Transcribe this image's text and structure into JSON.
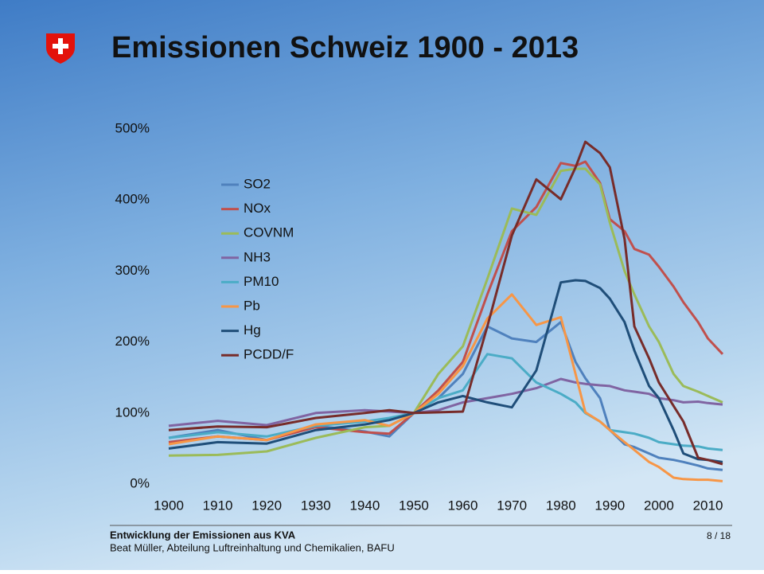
{
  "header": {
    "title": "Emissionen Schweiz 1900 - 2013"
  },
  "chart_data": {
    "type": "line",
    "x": [
      1900,
      1910,
      1920,
      1930,
      1940,
      1945,
      1950,
      1955,
      1960,
      1965,
      1970,
      1975,
      1980,
      1983,
      1985,
      1988,
      1990,
      1993,
      1995,
      1998,
      2000,
      2003,
      2005,
      2008,
      2010,
      2013
    ],
    "xlim": [
      1900,
      2013
    ],
    "xticks": [
      1900,
      1910,
      1920,
      1930,
      1940,
      1950,
      1960,
      1970,
      1980,
      1990,
      2000,
      2010
    ],
    "ylim": [
      0,
      500
    ],
    "yticks": [
      {
        "value": 0,
        "label": "0%"
      },
      {
        "value": 100,
        "label": "100%"
      },
      {
        "value": 200,
        "label": "200%"
      },
      {
        "value": 300,
        "label": "300%"
      },
      {
        "value": 400,
        "label": "400%"
      },
      {
        "value": 500,
        "label": "500%"
      }
    ],
    "grid": false,
    "legend": "upper left",
    "series": [
      {
        "name": "SO2",
        "color": "#4f81bd",
        "values": [
          65,
          76,
          62,
          82,
          74,
          67,
          100,
          121,
          155,
          222,
          205,
          200,
          228,
          172,
          149,
          121,
          76,
          56,
          52,
          43,
          37,
          34,
          31,
          26,
          22,
          20
        ]
      },
      {
        "name": "NOx",
        "color": "#c0504d",
        "values": [
          59,
          67,
          62,
          80,
          73,
          71,
          100,
          132,
          172,
          267,
          356,
          390,
          452,
          448,
          454,
          424,
          373,
          356,
          331,
          323,
          306,
          278,
          256,
          228,
          205,
          183
        ]
      },
      {
        "name": "COVNM",
        "color": "#9bbb59",
        "values": [
          40,
          41,
          46,
          65,
          80,
          82,
          100,
          155,
          194,
          289,
          388,
          379,
          441,
          444,
          444,
          422,
          368,
          300,
          267,
          222,
          200,
          155,
          138,
          130,
          124,
          115
        ]
      },
      {
        "name": "NH3",
        "color": "#8064a2",
        "values": [
          82,
          89,
          83,
          100,
          104,
          102,
          100,
          104,
          115,
          121,
          127,
          135,
          148,
          143,
          141,
          139,
          138,
          132,
          130,
          127,
          121,
          118,
          115,
          116,
          114,
          112
        ]
      },
      {
        "name": "PM10",
        "color": "#4bacc6",
        "values": [
          65,
          73,
          67,
          82,
          88,
          93,
          100,
          121,
          132,
          183,
          177,
          143,
          127,
          115,
          100,
          88,
          76,
          73,
          71,
          65,
          59,
          56,
          54,
          53,
          50,
          48
        ]
      },
      {
        "name": "Pb",
        "color": "#f79646",
        "values": [
          56,
          67,
          62,
          84,
          90,
          82,
          100,
          127,
          166,
          233,
          267,
          224,
          235,
          155,
          101,
          88,
          76,
          59,
          48,
          31,
          24,
          9,
          7,
          6,
          6,
          4
        ]
      },
      {
        "name": "Hg",
        "color": "#1f4e79",
        "values": [
          50,
          59,
          57,
          76,
          84,
          90,
          100,
          115,
          124,
          115,
          108,
          160,
          284,
          287,
          286,
          276,
          261,
          228,
          188,
          138,
          121,
          76,
          43,
          35,
          34,
          31
        ]
      },
      {
        "name": "PCDD/F",
        "color": "#772c2a",
        "values": [
          76,
          81,
          80,
          93,
          100,
          104,
          100,
          101,
          102,
          222,
          350,
          429,
          401,
          446,
          482,
          466,
          446,
          345,
          222,
          177,
          143,
          110,
          88,
          37,
          34,
          28
        ]
      }
    ]
  },
  "footer": {
    "subject": "Entwicklung der Emissionen aus KVA",
    "author": "Beat Müller, Abteilung Luftreinhaltung und Chemikalien, BAFU",
    "page": "8 / 18"
  }
}
